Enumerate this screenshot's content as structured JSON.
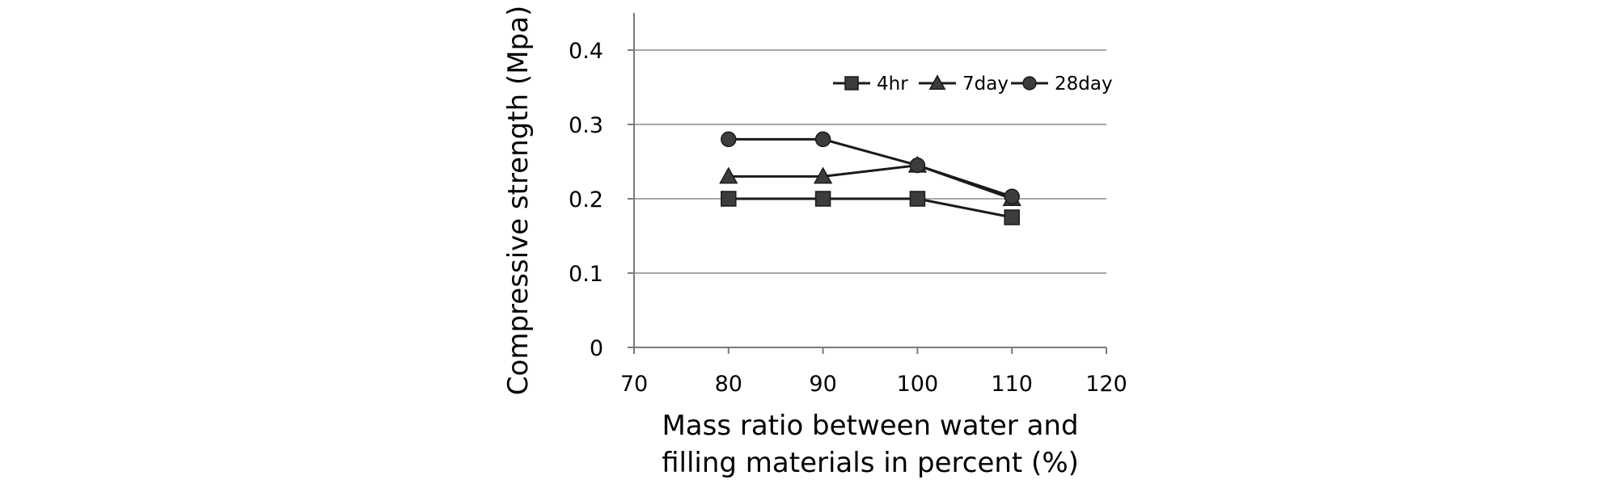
{
  "chart_data": {
    "type": "line",
    "title": "",
    "xlabel_lines": [
      "Mass ratio between water and",
      "filling materials in percent (%)"
    ],
    "ylabel": "Compressive strength (Mpa)",
    "xlim": [
      70,
      120
    ],
    "ylim": [
      0,
      0.45
    ],
    "x_ticks": [
      70,
      80,
      90,
      100,
      110,
      120
    ],
    "x_tick_labels": [
      "70",
      "80",
      "90",
      "100",
      "110",
      "120"
    ],
    "y_ticks": [
      0,
      0.1,
      0.2,
      0.3,
      0.4
    ],
    "y_tick_labels": [
      "0",
      "0.1",
      "0.2",
      "0.3",
      "0.4"
    ],
    "grid": "horizontal",
    "legend_position": "top-right",
    "x": [
      80,
      90,
      100,
      110
    ],
    "series": [
      {
        "name": "4hr",
        "marker": "square",
        "values": [
          0.2,
          0.2,
          0.2,
          0.175
        ]
      },
      {
        "name": "7day",
        "marker": "triangle",
        "values": [
          0.23,
          0.23,
          0.245,
          0.2
        ]
      },
      {
        "name": "28day",
        "marker": "circle",
        "values": [
          0.28,
          0.28,
          0.245,
          0.203
        ]
      }
    ],
    "colors": {
      "line": "#1a1a1a",
      "marker_fill": "#3c3c3c",
      "grid": "#8c8c8c",
      "axis": "#7a7a7a"
    }
  }
}
